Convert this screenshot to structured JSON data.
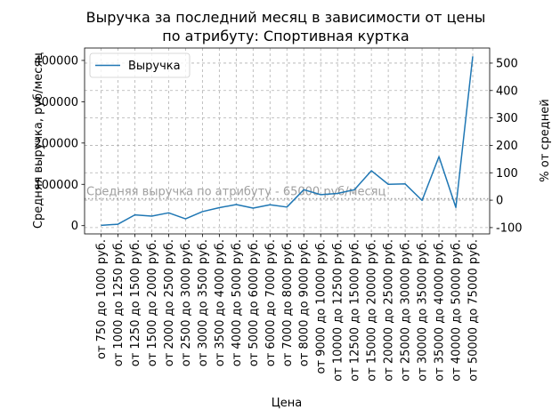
{
  "chart_data": {
    "type": "line",
    "title": "Выручка за последний месяц в зависимости от цены\nпо атрибуту: Спортивная куртка",
    "xlabel": "Цена",
    "ylabel": "Средняя выручка, руб/месяц",
    "y2label": "% от средней",
    "grid": true,
    "legend": {
      "position": "top-left",
      "entries": [
        "Выручка"
      ]
    },
    "categories": [
      "от 750 до 1000 руб.",
      "от 1000 до 1250 руб.",
      "от 1250 до 1500 руб.",
      "от 1500 до 2000 руб.",
      "от 2000 до 2500 руб.",
      "от 2500 до 3000 руб.",
      "от 3000 до 3500 руб.",
      "от 3500 до 4000 руб.",
      "от 4000 до 5000 руб.",
      "от 5000 до 6000 руб.",
      "от 6000 до 7000 руб.",
      "от 7000 до 8000 руб.",
      "от 8000 до 9000 руб.",
      "от 9000 до 10000 руб.",
      "от 10000 до 12500 руб.",
      "от 12500 до 15000 руб.",
      "от 15000 до 20000 руб.",
      "от 20000 до 25000 руб.",
      "от 25000 до 30000 руб.",
      "от 30000 до 35000 руб.",
      "от 35000 до 40000 руб.",
      "от 40000 до 50000 руб.",
      "от 50000 до 75000 руб."
    ],
    "series": [
      {
        "name": "Выручка",
        "color": "#1f77b4",
        "values": [
          800,
          3500,
          26000,
          23000,
          31000,
          16500,
          34000,
          43500,
          51000,
          42500,
          50500,
          45000,
          87000,
          75000,
          78000,
          87000,
          133000,
          100000,
          101000,
          61000,
          167000,
          44000,
          410000
        ]
      }
    ],
    "ylim": [
      -20000,
      430000
    ],
    "yticks": [
      0,
      100000,
      200000,
      300000,
      400000
    ],
    "y2lim": [
      -123,
      555
    ],
    "y2ticks": [
      -100,
      0,
      100,
      200,
      300,
      400,
      500
    ],
    "reference_line": {
      "value": 65000,
      "label": "Средняя выручка по атрибуту - 65000 руб/месяц",
      "color": "#a0a0a0"
    }
  }
}
